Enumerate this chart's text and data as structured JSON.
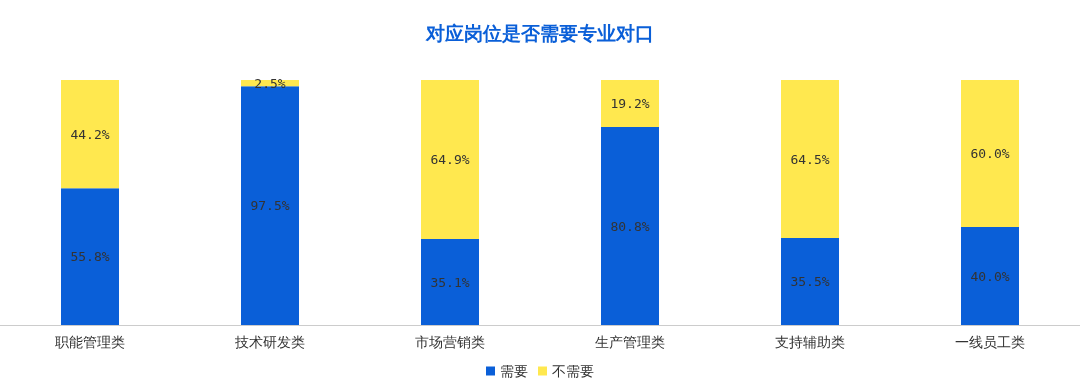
{
  "chart_data": {
    "type": "bar",
    "title": "对应岗位是否需要专业对口",
    "categories": [
      "职能管理类",
      "技术研发类",
      "市场营销类",
      "生产管理类",
      "支持辅助类",
      "一线员工类"
    ],
    "stacked": true,
    "series": [
      {
        "name": "需要",
        "color": "#0a5fd8",
        "values": [
          55.8,
          97.5,
          35.1,
          80.8,
          35.5,
          40.0
        ],
        "value_labels": [
          "55.8%",
          "97.5%",
          "35.1%",
          "80.8%",
          "35.5%",
          "40.0%"
        ]
      },
      {
        "name": "不需要",
        "color": "#ffe84f",
        "values": [
          44.2,
          2.5,
          64.9,
          19.2,
          64.5,
          60.0
        ],
        "value_labels": [
          "44.2%",
          "2.5%",
          "64.9%",
          "19.2%",
          "64.5%",
          "60.0%"
        ]
      }
    ],
    "legend": "bottom",
    "tick_labels": "x"
  }
}
